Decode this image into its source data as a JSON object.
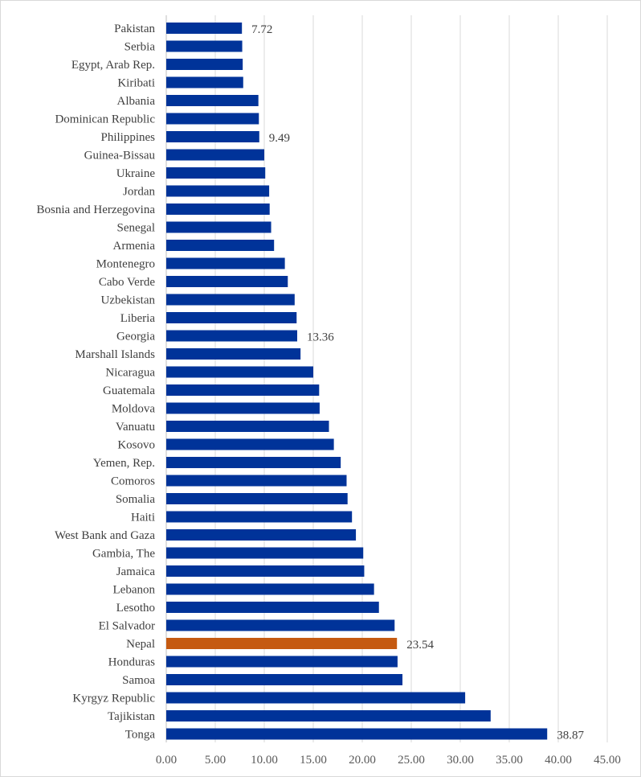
{
  "chart_data": {
    "type": "bar",
    "orientation": "horizontal",
    "title": "",
    "xlabel": "",
    "ylabel": "",
    "xlim": [
      0,
      45
    ],
    "xticks": [
      "0.00",
      "5.00",
      "10.00",
      "15.00",
      "20.00",
      "25.00",
      "30.00",
      "35.00",
      "40.00",
      "45.00"
    ],
    "grid": true,
    "categories": [
      "Pakistan",
      "Serbia",
      "Egypt, Arab Rep.",
      "Kiribati",
      "Albania",
      "Dominican Republic",
      "Philippines",
      "Guinea-Bissau",
      "Ukraine",
      "Jordan",
      "Bosnia and Herzegovina",
      "Senegal",
      "Armenia",
      "Montenegro",
      "Cabo Verde",
      "Uzbekistan",
      "Liberia",
      "Georgia",
      "Marshall Islands",
      "Nicaragua",
      "Guatemala",
      "Moldova",
      "Vanuatu",
      "Kosovo",
      "Yemen, Rep.",
      "Comoros",
      "Somalia",
      "Haiti",
      "West Bank and Gaza",
      "Gambia, The",
      "Jamaica",
      "Lebanon",
      "Lesotho",
      "El Salvador",
      "Nepal",
      "Honduras",
      "Samoa",
      "Kyrgyz Republic",
      "Tajikistan",
      "Tonga"
    ],
    "values": [
      7.72,
      7.75,
      7.8,
      7.85,
      9.4,
      9.45,
      9.49,
      10.0,
      10.1,
      10.5,
      10.55,
      10.7,
      11.0,
      12.1,
      12.4,
      13.1,
      13.3,
      13.36,
      13.7,
      15.0,
      15.6,
      15.65,
      16.6,
      17.1,
      17.8,
      18.4,
      18.5,
      18.95,
      19.35,
      20.1,
      20.2,
      21.2,
      21.7,
      23.3,
      23.54,
      23.6,
      24.1,
      30.5,
      33.1,
      38.87
    ],
    "data_labels": [
      "7.72",
      "",
      "",
      "",
      "",
      "",
      "9.49",
      "",
      "",
      "",
      "",
      "",
      "",
      "",
      "",
      "",
      "",
      "13.36",
      "",
      "",
      "",
      "",
      "",
      "",
      "",
      "",
      "",
      "",
      "",
      "",
      "",
      "",
      "",
      "",
      "23.54",
      "",
      "",
      "",
      "",
      "38.87"
    ],
    "highlight_category": "Nepal",
    "colors": {
      "bar": "#003399",
      "highlight": "#c55a11",
      "grid": "#d9d9d9",
      "text": "#404040"
    }
  }
}
